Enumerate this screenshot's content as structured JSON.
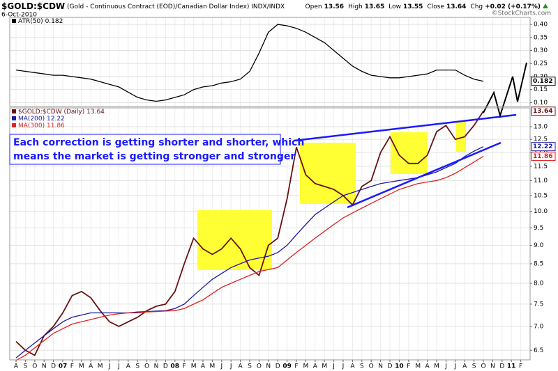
{
  "header": {
    "symbol": "$GOLD:$CDW",
    "description": "(Gold - Continuous Contract (EOD)/Canadian Dollar Index) INDX/INDX",
    "date": "6-Oct-2010",
    "source": "©StockCharts.com",
    "quote": [
      {
        "label": "Open",
        "text": "13.56"
      },
      {
        "label": "High",
        "text": "13.65"
      },
      {
        "label": "Low",
        "text": "13.55"
      },
      {
        "label": "Close",
        "text": "13.64"
      },
      {
        "label": "Chg",
        "text": "+0.02 (+0.17%)"
      }
    ]
  },
  "chart_data": [
    {
      "type": "line",
      "grid": true,
      "ylim": [
        0.085,
        0.427
      ],
      "yticks": [
        {
          "value": 0.1,
          "label": "0.10"
        },
        0.15,
        {
          "value": 0.2,
          "label": "0.20"
        },
        0.25,
        {
          "value": 0.3,
          "label": "0.30"
        },
        0.35,
        {
          "value": 0.4,
          "label": "0.40"
        }
      ],
      "series": [
        {
          "name": "ATR(50)",
          "color": "#000000",
          "values": [
            0.225,
            0.22,
            0.215,
            0.21,
            0.205,
            0.205,
            0.2,
            0.195,
            0.19,
            0.18,
            0.17,
            0.16,
            0.14,
            0.12,
            0.11,
            0.105,
            0.11,
            0.12,
            0.13,
            0.15,
            0.16,
            0.165,
            0.175,
            0.18,
            0.19,
            0.22,
            0.29,
            0.37,
            0.4,
            0.395,
            0.385,
            0.37,
            0.35,
            0.33,
            0.3,
            0.27,
            0.24,
            0.22,
            0.205,
            0.2,
            0.195,
            0.195,
            0.2,
            0.205,
            0.21,
            0.225,
            0.225,
            0.225,
            0.205,
            0.19,
            0.182,
            null,
            null,
            null,
            null
          ]
        }
      ]
    },
    {
      "type": "line",
      "grid": true,
      "log_scale": true,
      "ylim": [
        6.31,
        13.78
      ],
      "yticks": [
        6.5,
        {
          "value": 7,
          "label": "7.0"
        },
        7.5,
        {
          "value": 8,
          "label": "8.0"
        },
        8.5,
        {
          "value": 9,
          "label": "9.0"
        },
        9.5,
        {
          "value": 10,
          "label": "10.0"
        },
        10.5,
        {
          "value": 11,
          "label": "11.0"
        },
        11.5,
        {
          "value": 12,
          "label": "12.0"
        },
        12.5,
        {
          "value": 13,
          "label": "13.0"
        }
      ],
      "categories": [
        "A",
        "S",
        "O",
        "N",
        "D",
        "07",
        "F",
        "M",
        "A",
        "M",
        "J",
        "J",
        "A",
        "S",
        "O",
        "N",
        "D",
        "08",
        "F",
        "M",
        "A",
        "M",
        "J",
        "J",
        "A",
        "S",
        "O",
        "N",
        "D",
        "09",
        "F",
        "M",
        "A",
        "M",
        "J",
        "J",
        "A",
        "S",
        "O",
        "N",
        "D",
        "10",
        "F",
        "M",
        "A",
        "M",
        "J",
        "J",
        "A",
        "S",
        "O",
        "N",
        "D",
        "11",
        "F"
      ],
      "series": [
        {
          "name": "$GOLD:$CDW (Daily)",
          "color": "#6b1010",
          "values": [
            6.68,
            6.5,
            6.4,
            6.8,
            7.0,
            7.3,
            7.7,
            7.8,
            7.65,
            7.35,
            7.1,
            7.0,
            7.1,
            7.2,
            7.35,
            7.45,
            7.5,
            7.8,
            8.5,
            9.2,
            8.9,
            8.75,
            8.9,
            9.2,
            8.9,
            8.4,
            8.2,
            9.0,
            9.2,
            10.4,
            12.2,
            11.2,
            10.9,
            10.8,
            10.7,
            10.5,
            10.2,
            10.8,
            11.0,
            12.0,
            12.6,
            11.9,
            11.6,
            11.6,
            11.9,
            12.8,
            13.05,
            12.5,
            12.6,
            13.05,
            13.64,
            null,
            null,
            null,
            null
          ]
        },
        {
          "name": "MA(200)",
          "color": "#1a1aa0",
          "values": [
            6.35,
            6.5,
            6.65,
            6.8,
            6.95,
            7.1,
            7.2,
            7.25,
            7.3,
            7.3,
            7.3,
            7.3,
            7.3,
            7.32,
            7.33,
            7.34,
            7.35,
            7.4,
            7.5,
            7.7,
            7.9,
            8.1,
            8.25,
            8.4,
            8.5,
            8.6,
            8.65,
            8.7,
            8.8,
            9.0,
            9.3,
            9.6,
            9.9,
            10.1,
            10.3,
            10.5,
            10.6,
            10.7,
            10.8,
            10.9,
            10.95,
            11.0,
            11.05,
            11.1,
            11.2,
            11.3,
            11.45,
            11.6,
            11.85,
            12.05,
            12.22,
            null,
            null,
            null,
            null
          ]
        },
        {
          "name": "MA(300)",
          "color": "#e02020",
          "values": [
            6.3,
            6.4,
            6.55,
            6.7,
            6.85,
            6.95,
            7.05,
            7.1,
            7.15,
            7.2,
            7.25,
            7.28,
            7.3,
            7.3,
            7.32,
            7.33,
            7.34,
            7.35,
            7.4,
            7.5,
            7.6,
            7.75,
            7.9,
            8.0,
            8.1,
            8.2,
            8.3,
            8.35,
            8.4,
            8.6,
            8.8,
            9.0,
            9.2,
            9.4,
            9.6,
            9.8,
            9.95,
            10.1,
            10.25,
            10.4,
            10.55,
            10.7,
            10.8,
            10.9,
            10.95,
            11.0,
            11.1,
            11.25,
            11.45,
            11.65,
            11.86,
            null,
            null,
            null,
            null
          ]
        }
      ],
      "annotation": [
        "Each correction is getting shorter and shorter, which",
        "means the market is getting stronger and stronger"
      ]
    }
  ]
}
